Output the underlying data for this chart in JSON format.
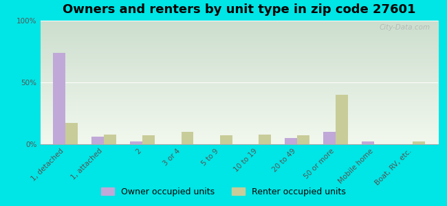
{
  "title": "Owners and renters by unit type in zip code 27601",
  "categories": [
    "1, detached",
    "1, attached",
    "2",
    "3 or 4",
    "5 to 9",
    "10 to 19",
    "20 to 49",
    "50 or more",
    "Mobile home",
    "Boat, RV, etc."
  ],
  "owner_values": [
    74,
    6,
    2,
    0,
    0,
    0,
    5,
    10,
    2,
    0
  ],
  "renter_values": [
    17,
    8,
    7,
    10,
    7,
    8,
    7,
    40,
    0,
    2
  ],
  "owner_color": "#c0a8d8",
  "renter_color": "#c8cc98",
  "background_color": "#00e5e5",
  "grad_top": "#ccdece",
  "grad_bottom": "#f2f8ee",
  "legend_owner": "Owner occupied units",
  "legend_renter": "Renter occupied units",
  "ylim": [
    0,
    100
  ],
  "yticks": [
    0,
    50,
    100
  ],
  "ytick_labels": [
    "0%",
    "50%",
    "100%"
  ],
  "bar_width": 0.32,
  "title_fontsize": 13,
  "tick_fontsize": 7.5,
  "legend_fontsize": 9,
  "watermark": "City-Data.com"
}
